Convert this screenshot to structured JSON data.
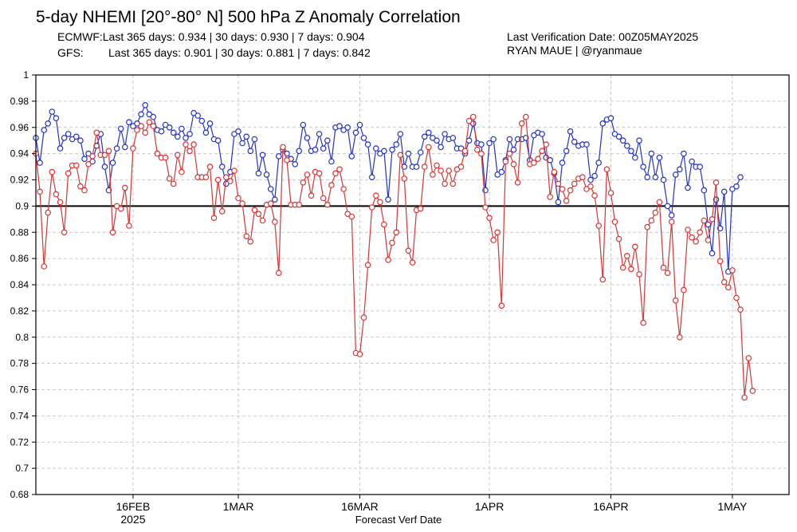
{
  "header": {
    "title": "5-day NHEMI [20°-80° N] 500 hPa Z Anomaly Correlation",
    "ecmwf_label": "ECMWF:",
    "ecmwf_stats": "Last 365 days: 0.934 | 30 days: 0.930 | 7 days: 0.904",
    "gfs_label": "GFS:",
    "gfs_stats": "Last 365 days: 0.901 | 30 days: 0.881 | 7 days: 0.842",
    "verification": "Last Verification Date: 00Z05MAY2025",
    "author": "RYAN MAUE | @ryanmaue"
  },
  "chart_data": {
    "type": "line",
    "title": "5-day NHEMI [20°-80° N] 500 hPa Z Anomaly Correlation",
    "xlabel": "Forecast Verf Date",
    "ylabel": "",
    "x_start": "2025-02-04",
    "x_step_days": 0.5,
    "xlim": [
      "2025-02-04",
      "2025-05-08"
    ],
    "ylim": [
      0.68,
      1.0
    ],
    "x_ticks": [
      {
        "date": "2025-02-16",
        "label": "16FEB",
        "sublabel": "2025"
      },
      {
        "date": "2025-03-01",
        "label": "1MAR",
        "sublabel": ""
      },
      {
        "date": "2025-03-16",
        "label": "16MAR",
        "sublabel": ""
      },
      {
        "date": "2025-04-01",
        "label": "1APR",
        "sublabel": ""
      },
      {
        "date": "2025-04-16",
        "label": "16APR",
        "sublabel": ""
      },
      {
        "date": "2025-05-01",
        "label": "1MAY",
        "sublabel": ""
      }
    ],
    "y_ticks": [
      "0.68",
      "0.7",
      "0.72",
      "0.74",
      "0.76",
      "0.78",
      "0.8",
      "0.82",
      "0.84",
      "0.86",
      "0.88",
      "0.9",
      "0.92",
      "0.94",
      "0.96",
      "0.98",
      "1"
    ],
    "reference_line": 0.9,
    "grid": true,
    "series": [
      {
        "name": "ECMWF",
        "color": "#2233cc",
        "values": [
          0.952,
          0.933,
          0.958,
          0.963,
          0.972,
          0.967,
          0.944,
          0.952,
          0.955,
          0.951,
          0.953,
          0.95,
          0.936,
          0.94,
          0.934,
          0.946,
          0.955,
          0.93,
          0.912,
          0.933,
          0.944,
          0.959,
          0.945,
          0.964,
          0.961,
          0.963,
          0.97,
          0.977,
          0.97,
          0.968,
          0.958,
          0.957,
          0.962,
          0.96,
          0.956,
          0.953,
          0.959,
          0.952,
          0.955,
          0.971,
          0.969,
          0.965,
          0.956,
          0.963,
          0.951,
          0.95,
          0.93,
          0.917,
          0.926,
          0.955,
          0.957,
          0.948,
          0.953,
          0.942,
          0.951,
          0.925,
          0.939,
          0.924,
          0.913,
          0.905,
          0.938,
          0.943,
          0.94,
          0.936,
          0.932,
          0.942,
          0.962,
          0.952,
          0.942,
          0.943,
          0.955,
          0.944,
          0.95,
          0.934,
          0.96,
          0.961,
          0.958,
          0.96,
          0.938,
          0.956,
          0.962,
          0.952,
          0.947,
          0.922,
          0.944,
          0.94,
          0.942,
          0.905,
          0.943,
          0.947,
          0.955,
          0.93,
          0.94,
          0.93,
          0.93,
          0.941,
          0.953,
          0.956,
          0.952,
          0.95,
          0.945,
          0.955,
          0.951,
          0.952,
          0.944,
          0.944,
          0.94,
          0.95,
          0.963,
          0.948,
          0.947,
          0.912,
          0.948,
          0.951,
          0.924,
          0.926,
          0.935,
          0.951,
          0.943,
          0.951,
          0.951,
          0.952,
          0.935,
          0.954,
          0.956,
          0.955,
          0.937,
          0.935,
          0.925,
          0.903,
          0.933,
          0.942,
          0.957,
          0.949,
          0.946,
          0.947,
          0.947,
          0.92,
          0.923,
          0.933,
          0.963,
          0.966,
          0.967,
          0.955,
          0.953,
          0.95,
          0.946,
          0.942,
          0.937,
          0.95,
          0.93,
          0.922,
          0.94,
          0.922,
          0.937,
          0.92,
          0.9,
          0.893,
          0.924,
          0.928,
          0.94,
          0.914,
          0.934,
          0.93,
          0.93,
          0.912,
          0.886,
          0.864,
          0.905,
          0.883,
          0.911,
          0.85,
          0.913,
          0.915,
          0.922
        ]
      },
      {
        "name": "GFS",
        "color": "#dd3333",
        "values": [
          0.94,
          0.911,
          0.854,
          0.895,
          0.926,
          0.909,
          0.903,
          0.88,
          0.925,
          0.931,
          0.931,
          0.915,
          0.912,
          0.932,
          0.938,
          0.956,
          0.939,
          0.939,
          0.942,
          0.88,
          0.9,
          0.898,
          0.914,
          0.885,
          0.944,
          0.958,
          0.961,
          0.956,
          0.964,
          0.961,
          0.94,
          0.937,
          0.937,
          0.921,
          0.917,
          0.939,
          0.926,
          0.947,
          0.942,
          0.947,
          0.922,
          0.922,
          0.922,
          0.93,
          0.891,
          0.92,
          0.896,
          0.922,
          0.919,
          0.927,
          0.906,
          0.902,
          0.877,
          0.873,
          0.897,
          0.894,
          0.889,
          0.901,
          0.902,
          0.888,
          0.849,
          0.945,
          0.935,
          0.901,
          0.901,
          0.901,
          0.918,
          0.924,
          0.908,
          0.926,
          0.925,
          0.906,
          0.901,
          0.916,
          0.925,
          0.928,
          0.913,
          0.894,
          0.892,
          0.788,
          0.787,
          0.815,
          0.855,
          0.899,
          0.908,
          0.903,
          0.886,
          0.859,
          0.872,
          0.88,
          0.939,
          0.921,
          0.866,
          0.857,
          0.897,
          0.898,
          0.93,
          0.945,
          0.924,
          0.931,
          0.927,
          0.917,
          0.927,
          0.917,
          0.928,
          0.93,
          0.942,
          0.965,
          0.968,
          0.943,
          0.94,
          0.899,
          0.891,
          0.874,
          0.88,
          0.824,
          0.934,
          0.94,
          0.932,
          0.918,
          0.963,
          0.968,
          0.932,
          0.933,
          0.936,
          0.942,
          0.947,
          0.907,
          0.926,
          0.917,
          0.913,
          0.904,
          0.912,
          0.917,
          0.921,
          0.922,
          0.913,
          0.915,
          0.908,
          0.885,
          0.844,
          0.928,
          0.91,
          0.888,
          0.875,
          0.853,
          0.862,
          0.852,
          0.869,
          0.848,
          0.811,
          0.884,
          0.889,
          0.895,
          0.903,
          0.853,
          0.849,
          0.888,
          0.828,
          0.8,
          0.836,
          0.882,
          0.876,
          0.873,
          0.88,
          0.889,
          0.874,
          0.89,
          0.918,
          0.858,
          0.842,
          0.838,
          0.851,
          0.83,
          0.821,
          0.754,
          0.784,
          0.759
        ]
      }
    ]
  },
  "colors": {
    "ecmwf": "#2233cc",
    "gfs": "#dd3333",
    "grid": "#bbbbbb",
    "axis": "#000000"
  }
}
